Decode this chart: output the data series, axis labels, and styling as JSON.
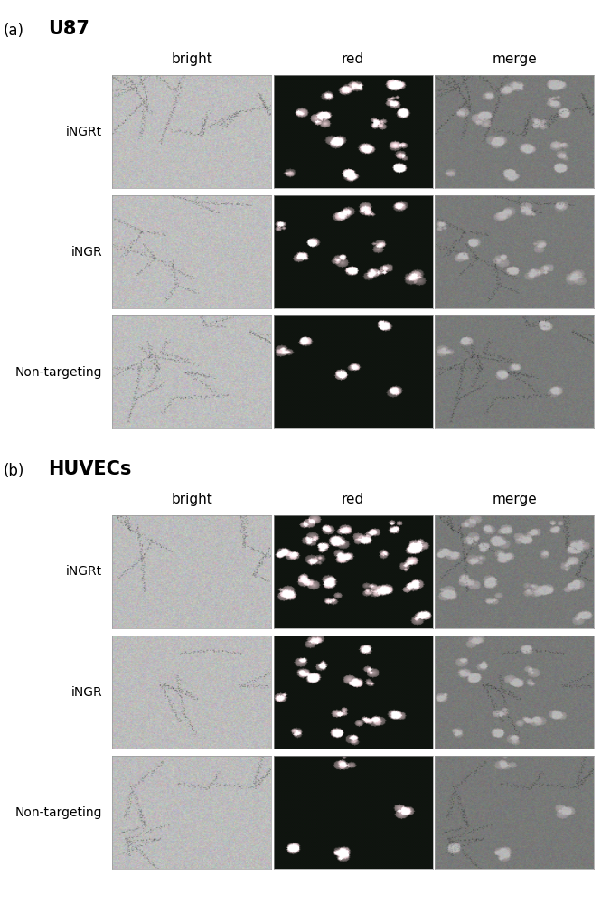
{
  "panel_a_title": "U87",
  "panel_b_title": "HUVECs",
  "panel_a_label": "(a)",
  "panel_b_label": "(b)",
  "col_labels": [
    "bright",
    "red",
    "merge"
  ],
  "row_labels_a": [
    "iNGRt",
    "iNGR",
    "Non-targeting"
  ],
  "row_labels_b": [
    "iNGRt",
    "iNGR",
    "Non-targeting"
  ],
  "bg_color": "#ffffff",
  "title_fontsize": 15,
  "col_label_fontsize": 11,
  "row_label_fontsize": 10,
  "panel_label_fontsize": 12,
  "panel_title_fontsize": 15
}
